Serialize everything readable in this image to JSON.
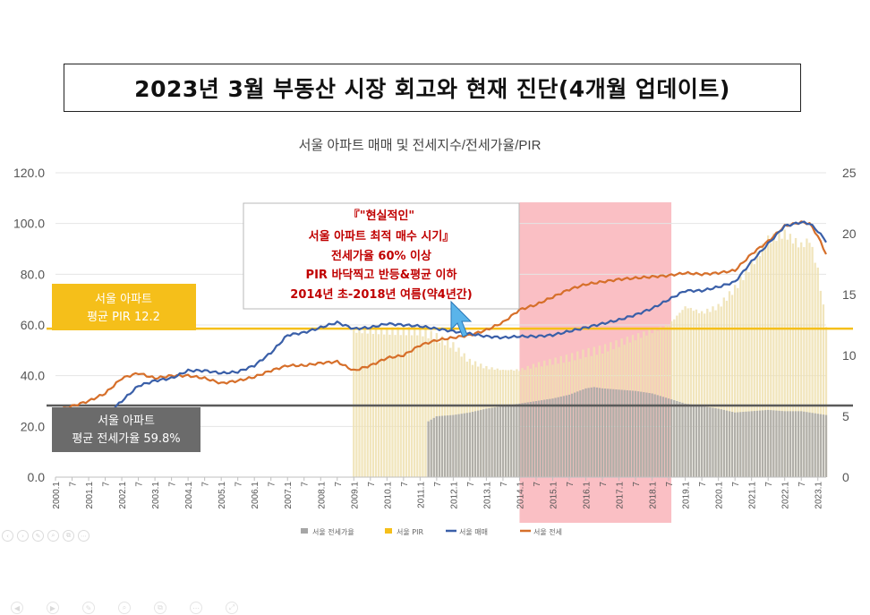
{
  "slide": {
    "title": "2023년 3월 부동산 시장 회고와 현재 진단(4개월 업데이트)"
  },
  "callouts": {
    "best_time_lines": [
      "『\"현실적인\"",
      "서울 아파트 최적 매수 시기』",
      "전세가율 60% 이상",
      "PIR 바닥찍고 반등&평균 이하",
      "2014년 초-2018년 여름(약4년간)"
    ],
    "pir_avg_lines": [
      "서울 아파트",
      "평균 PIR 12.2"
    ],
    "jeonse_avg_lines": [
      "서울 아파트",
      "평균 전세가율 59.8%"
    ]
  },
  "controls": [
    "‹",
    "›",
    "✎",
    "⌕",
    "⧉",
    "⋯"
  ],
  "controls2": [
    "◀",
    "▶",
    "✎",
    "⌕",
    "⧉",
    "⋯",
    "⤢"
  ],
  "chart_data": {
    "type": "line",
    "title": "서울 아파트 매매 및 전세지수/전세가율/PIR",
    "colors": {
      "jeonse_ratio": "#a6a6a6",
      "pir": "#f5bf1a",
      "sale": "#3a5fa8",
      "jeonse": "#d66f2a",
      "highlight": "#f8a9b0",
      "pir_avg_box": "#f5bf1a",
      "jeonse_avg_box": "#6b6b6b",
      "callout_text": "#c00000",
      "cursor": "#5ab4ea"
    },
    "y_left": {
      "min": 0,
      "max": 120,
      "ticks": [
        "0.0",
        "20.0",
        "40.0",
        "60.0",
        "80.0",
        "100.0",
        "120.0"
      ]
    },
    "y_right": {
      "min": 0,
      "max": 25,
      "ticks": [
        "0",
        "5",
        "10",
        "15",
        "20",
        "25"
      ]
    },
    "x_range": [
      2000.0,
      2023.25
    ],
    "x_tick_labels": [
      "2000.1",
      "7",
      "2001.1",
      "7",
      "2002.1",
      "7",
      "2003.1",
      "7",
      "2004.1",
      "7",
      "2005.1",
      "7",
      "2006.1",
      "7",
      "2007.1",
      "7",
      "2008.1",
      "7",
      "2009.1",
      "7",
      "2010.1",
      "7",
      "2011.1",
      "7",
      "2012.1",
      "7",
      "2013.1",
      "7",
      "2014.1",
      "7",
      "2015.1",
      "7",
      "2016.1",
      "7",
      "2017.1",
      "7",
      "2018.1",
      "7",
      "2019.1",
      "7",
      "2020.1",
      "7",
      "2021.1",
      "7",
      "2022.1",
      "7",
      "2023.1"
    ],
    "highlight_period": [
      2014.0,
      2018.58
    ],
    "reference_lines": {
      "pir_avg": 12.2,
      "jeonse_ratio_avg": 59.8
    },
    "series": [
      {
        "name": "서울 전세가율",
        "axis": "left",
        "kind": "bar",
        "points": [
          [
            2011.25,
            22
          ],
          [
            2011.5,
            24
          ],
          [
            2012.0,
            24.5
          ],
          [
            2012.5,
            25.5
          ],
          [
            2013.0,
            27
          ],
          [
            2013.5,
            28
          ],
          [
            2014.0,
            29
          ],
          [
            2014.5,
            30
          ],
          [
            2015.0,
            31
          ],
          [
            2015.5,
            32.5
          ],
          [
            2016.0,
            35
          ],
          [
            2016.25,
            35.5
          ],
          [
            2016.5,
            35
          ],
          [
            2017.0,
            34.5
          ],
          [
            2017.5,
            34
          ],
          [
            2018.0,
            33
          ],
          [
            2018.5,
            31
          ],
          [
            2019.0,
            29
          ],
          [
            2019.5,
            28
          ],
          [
            2020.0,
            27
          ],
          [
            2020.5,
            25.5
          ],
          [
            2021.0,
            26
          ],
          [
            2021.5,
            26.5
          ],
          [
            2022.0,
            26
          ],
          [
            2022.5,
            26
          ],
          [
            2023.0,
            25
          ],
          [
            2023.25,
            24.5
          ]
        ]
      },
      {
        "name": "서울 PIR",
        "axis": "right",
        "kind": "bar",
        "points": [
          [
            2009.0,
            12
          ],
          [
            2010.0,
            12
          ],
          [
            2011.0,
            12
          ],
          [
            2011.5,
            11.5
          ],
          [
            2012.0,
            10.8
          ],
          [
            2012.5,
            9.5
          ],
          [
            2013.0,
            9
          ],
          [
            2013.5,
            8.8
          ],
          [
            2014.0,
            8.8
          ],
          [
            2014.5,
            9.2
          ],
          [
            2015.0,
            9.5
          ],
          [
            2015.5,
            9.8
          ],
          [
            2016.0,
            10.2
          ],
          [
            2016.5,
            10.5
          ],
          [
            2017.0,
            11
          ],
          [
            2017.5,
            11.5
          ],
          [
            2018.0,
            12
          ],
          [
            2018.5,
            12.5
          ],
          [
            2019.0,
            14
          ],
          [
            2019.5,
            13.5
          ],
          [
            2020.0,
            14
          ],
          [
            2020.5,
            15.5
          ],
          [
            2021.0,
            17.5
          ],
          [
            2021.5,
            19.5
          ],
          [
            2022.0,
            20
          ],
          [
            2022.25,
            19.5
          ],
          [
            2022.5,
            19
          ],
          [
            2022.75,
            19.5
          ],
          [
            2023.0,
            17
          ],
          [
            2023.25,
            12.5
          ]
        ]
      },
      {
        "name": "서울 매매",
        "axis": "left",
        "kind": "line",
        "points": [
          [
            2000.0,
            18
          ],
          [
            2001.0,
            22
          ],
          [
            2001.5,
            24
          ],
          [
            2002.0,
            30
          ],
          [
            2002.5,
            36
          ],
          [
            2003.0,
            38
          ],
          [
            2003.5,
            39
          ],
          [
            2004.0,
            42
          ],
          [
            2004.5,
            42
          ],
          [
            2005.0,
            41
          ],
          [
            2005.5,
            41.5
          ],
          [
            2006.0,
            44
          ],
          [
            2006.5,
            49
          ],
          [
            2007.0,
            56
          ],
          [
            2007.5,
            57
          ],
          [
            2008.0,
            59
          ],
          [
            2008.5,
            61
          ],
          [
            2009.0,
            58.5
          ],
          [
            2009.5,
            59
          ],
          [
            2010.0,
            60.5
          ],
          [
            2010.5,
            60
          ],
          [
            2011.0,
            59.5
          ],
          [
            2011.5,
            58.5
          ],
          [
            2012.0,
            57.5
          ],
          [
            2012.5,
            56.5
          ],
          [
            2013.0,
            55.5
          ],
          [
            2013.5,
            55
          ],
          [
            2014.0,
            55.5
          ],
          [
            2014.5,
            55.5
          ],
          [
            2015.0,
            56
          ],
          [
            2015.5,
            57.5
          ],
          [
            2016.0,
            59
          ],
          [
            2016.5,
            60.5
          ],
          [
            2017.0,
            62
          ],
          [
            2017.5,
            64
          ],
          [
            2018.0,
            66.5
          ],
          [
            2018.5,
            70
          ],
          [
            2019.0,
            73.5
          ],
          [
            2019.5,
            73.5
          ],
          [
            2020.0,
            75
          ],
          [
            2020.5,
            77
          ],
          [
            2021.0,
            85
          ],
          [
            2021.5,
            92
          ],
          [
            2022.0,
            99
          ],
          [
            2022.5,
            100.5
          ],
          [
            2022.75,
            100
          ],
          [
            2023.0,
            97
          ],
          [
            2023.25,
            93
          ]
        ]
      },
      {
        "name": "서울 전세",
        "axis": "left",
        "kind": "line",
        "points": [
          [
            2000.0,
            26
          ],
          [
            2001.0,
            30
          ],
          [
            2001.5,
            33
          ],
          [
            2002.0,
            39
          ],
          [
            2002.5,
            41
          ],
          [
            2003.0,
            39
          ],
          [
            2003.5,
            40
          ],
          [
            2004.0,
            40
          ],
          [
            2004.5,
            39
          ],
          [
            2005.0,
            37
          ],
          [
            2005.5,
            38
          ],
          [
            2006.0,
            39.5
          ],
          [
            2006.5,
            42
          ],
          [
            2007.0,
            44
          ],
          [
            2007.5,
            44
          ],
          [
            2008.0,
            45
          ],
          [
            2008.5,
            45.5
          ],
          [
            2009.0,
            42
          ],
          [
            2009.5,
            44
          ],
          [
            2010.0,
            47
          ],
          [
            2010.5,
            48
          ],
          [
            2011.0,
            52
          ],
          [
            2011.5,
            54
          ],
          [
            2012.0,
            55
          ],
          [
            2012.5,
            56
          ],
          [
            2013.0,
            58
          ],
          [
            2013.5,
            61
          ],
          [
            2014.0,
            66
          ],
          [
            2014.5,
            68
          ],
          [
            2015.0,
            71
          ],
          [
            2015.5,
            74
          ],
          [
            2016.0,
            76
          ],
          [
            2016.5,
            77
          ],
          [
            2017.0,
            78
          ],
          [
            2017.5,
            78.5
          ],
          [
            2018.0,
            79
          ],
          [
            2018.5,
            79.5
          ],
          [
            2019.0,
            80.5
          ],
          [
            2019.5,
            80
          ],
          [
            2020.0,
            80.5
          ],
          [
            2020.5,
            81.5
          ],
          [
            2021.0,
            88
          ],
          [
            2021.5,
            93
          ],
          [
            2022.0,
            99
          ],
          [
            2022.5,
            100.5
          ],
          [
            2022.75,
            100
          ],
          [
            2023.0,
            95
          ],
          [
            2023.25,
            88
          ]
        ]
      }
    ],
    "legend": {
      "position": "bottom",
      "items": [
        {
          "label": "서울 전세가율",
          "color": "#a6a6a6"
        },
        {
          "label": "서울 PIR",
          "color": "#f5bf1a"
        },
        {
          "label": "서울 매매",
          "color": "#3a5fa8"
        },
        {
          "label": "서울 전세",
          "color": "#d66f2a"
        }
      ]
    }
  }
}
